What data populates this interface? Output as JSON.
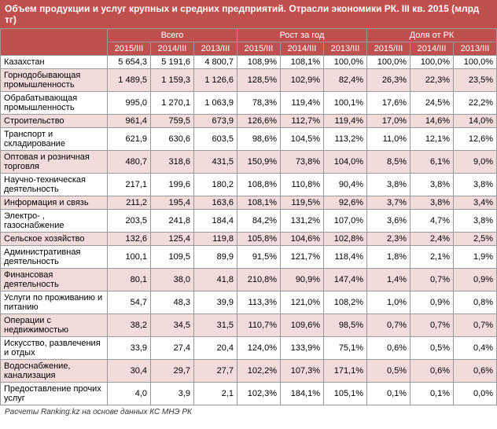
{
  "title": "Объем продукции и услуг крупных и средних предприятий. Отрасли экономики РК. III кв. 2015 (млрд тг)",
  "groups": [
    "Всего",
    "Рост за год",
    "Доля от РК"
  ],
  "years": [
    "2015/III",
    "2014/III",
    "2013/III"
  ],
  "rows": [
    {
      "label": "Казахстан",
      "v": [
        "5 654,3",
        "5 191,6",
        "4 800,7",
        "108,9%",
        "108,1%",
        "100,0%",
        "100,0%",
        "100,0%",
        "100,0%"
      ]
    },
    {
      "label": "Горнодобывающая промышленность",
      "v": [
        "1 489,5",
        "1 159,3",
        "1 126,6",
        "128,5%",
        "102,9%",
        "82,4%",
        "26,3%",
        "22,3%",
        "23,5%"
      ]
    },
    {
      "label": "Обрабатывающая промышленность",
      "v": [
        "995,0",
        "1 270,1",
        "1 063,9",
        "78,3%",
        "119,4%",
        "100,1%",
        "17,6%",
        "24,5%",
        "22,2%"
      ]
    },
    {
      "label": "Строительство",
      "v": [
        "961,4",
        "759,5",
        "673,9",
        "126,6%",
        "112,7%",
        "119,4%",
        "17,0%",
        "14,6%",
        "14,0%"
      ]
    },
    {
      "label": "Транспорт и складирование",
      "v": [
        "621,9",
        "630,6",
        "603,5",
        "98,6%",
        "104,5%",
        "113,2%",
        "11,0%",
        "12,1%",
        "12,6%"
      ]
    },
    {
      "label": "Оптовая и розничная торговля",
      "v": [
        "480,7",
        "318,6",
        "431,5",
        "150,9%",
        "73,8%",
        "104,0%",
        "8,5%",
        "6,1%",
        "9,0%"
      ]
    },
    {
      "label": "Научно-техническая деятельность",
      "v": [
        "217,1",
        "199,6",
        "180,2",
        "108,8%",
        "110,8%",
        "90,4%",
        "3,8%",
        "3,8%",
        "3,8%"
      ]
    },
    {
      "label": "Информация и связь",
      "v": [
        "211,2",
        "195,4",
        "163,6",
        "108,1%",
        "119,5%",
        "92,6%",
        "3,7%",
        "3,8%",
        "3,4%"
      ]
    },
    {
      "label": "Электро- , газоснабжение",
      "v": [
        "203,5",
        "241,8",
        "184,4",
        "84,2%",
        "131,2%",
        "107,0%",
        "3,6%",
        "4,7%",
        "3,8%"
      ]
    },
    {
      "label": "Сельское хозяйство",
      "v": [
        "132,6",
        "125,4",
        "119,8",
        "105,8%",
        "104,6%",
        "102,8%",
        "2,3%",
        "2,4%",
        "2,5%"
      ]
    },
    {
      "label": "Административная деятельность",
      "v": [
        "100,1",
        "109,5",
        "89,9",
        "91,5%",
        "121,7%",
        "118,4%",
        "1,8%",
        "2,1%",
        "1,9%"
      ]
    },
    {
      "label": "Финансовая деятельность",
      "v": [
        "80,1",
        "38,0",
        "41,8",
        "210,8%",
        "90,9%",
        "147,4%",
        "1,4%",
        "0,7%",
        "0,9%"
      ]
    },
    {
      "label": "Услуги по проживанию и питанию",
      "v": [
        "54,7",
        "48,3",
        "39,9",
        "113,3%",
        "121,0%",
        "108,2%",
        "1,0%",
        "0,9%",
        "0,8%"
      ]
    },
    {
      "label": "Операции с недвижимостью",
      "v": [
        "38,2",
        "34,5",
        "31,5",
        "110,7%",
        "109,6%",
        "98,5%",
        "0,7%",
        "0,7%",
        "0,7%"
      ]
    },
    {
      "label": "Искусство, развлечения и отдых",
      "v": [
        "33,9",
        "27,4",
        "20,4",
        "124,0%",
        "133,9%",
        "75,1%",
        "0,6%",
        "0,5%",
        "0,4%"
      ]
    },
    {
      "label": "Водоснабжение, канализация",
      "v": [
        "30,4",
        "29,7",
        "27,7",
        "102,2%",
        "107,3%",
        "171,1%",
        "0,5%",
        "0,6%",
        "0,6%"
      ]
    },
    {
      "label": "Предоставление прочих услуг",
      "v": [
        "4,0",
        "3,9",
        "2,1",
        "102,3%",
        "184,1%",
        "105,1%",
        "0,1%",
        "0,1%",
        "0,0%"
      ]
    }
  ],
  "footnote": "Расчеты Ranking.kz на основе данных КС МНЭ РК",
  "colors": {
    "header": "#c0504d",
    "alt": "#f2dcdb"
  }
}
